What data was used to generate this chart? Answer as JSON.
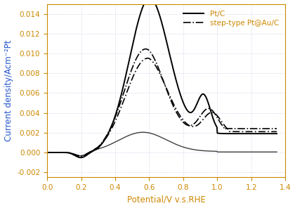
{
  "xlabel": "Potential/V v.s.RHE",
  "ylabel": "Current density/Acm⁻²Pt",
  "xlim": [
    0.0,
    1.4
  ],
  "ylim": [
    -0.0025,
    0.015
  ],
  "xticks": [
    0.0,
    0.2,
    0.4,
    0.6,
    0.8,
    1.0,
    1.2,
    1.4
  ],
  "yticks": [
    -0.002,
    0.0,
    0.002,
    0.004,
    0.006,
    0.008,
    0.01,
    0.012,
    0.014
  ],
  "legend_labels": [
    "Pt/C",
    "step-type Pt@Au/C"
  ],
  "xlabel_color": "#CC8800",
  "ylabel_color": "#2255CC",
  "tick_color": "#CC8800",
  "legend_text_color": "#CC8800",
  "background_color": "#FFFFFF",
  "grid_color": "#C8C8E8",
  "axis_label_fontsize": 8.5,
  "tick_fontsize": 7.5
}
